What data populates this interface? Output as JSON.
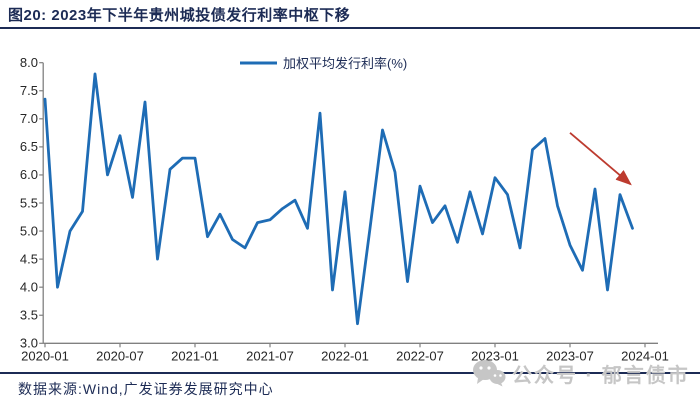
{
  "page": {
    "title": "图20: 2023年下半年贵州城投债发行利率中枢下移",
    "source_note": "数据来源:Wind,广发证券发展研究中心",
    "watermark_text": "公众号 · 郁言债市"
  },
  "legend": {
    "label": "加权平均发行利率(%)"
  },
  "colors": {
    "accent_navy": "#1c2b55",
    "line_blue": "#1e6cb5",
    "arrow_red": "#bd3b2f",
    "axis_line": "#808080",
    "tick_label": "#262626",
    "watermark_gray": "#c6c6c6"
  },
  "chart_data": {
    "type": "line",
    "title": "",
    "xlabel": "",
    "ylabel": "",
    "legend_position": "top-center",
    "grid": false,
    "ylim": [
      3.0,
      8.0
    ],
    "y_ticks": [
      8.0,
      7.5,
      7.0,
      6.5,
      6.0,
      5.5,
      5.0,
      4.5,
      4.0,
      3.5,
      3.0
    ],
    "x_tick_labels": [
      "2020-01",
      "2020-07",
      "2021-01",
      "2021-07",
      "2022-01",
      "2022-07",
      "2023-01",
      "2023-07",
      "2024-01"
    ],
    "series": [
      {
        "name": "加权平均发行利率(%)",
        "color": "#1e6cb5",
        "x": [
          "2020-01",
          "2020-02",
          "2020-03",
          "2020-04",
          "2020-05",
          "2020-06",
          "2020-07",
          "2020-08",
          "2020-09",
          "2020-10",
          "2020-11",
          "2020-12",
          "2021-01",
          "2021-02",
          "2021-03",
          "2021-04",
          "2021-05",
          "2021-06",
          "2021-07",
          "2021-08",
          "2021-09",
          "2021-10",
          "2021-11",
          "2021-12",
          "2022-01",
          "2022-02",
          "2022-03",
          "2022-04",
          "2022-05",
          "2022-06",
          "2022-07",
          "2022-08",
          "2022-09",
          "2022-10",
          "2022-11",
          "2022-12",
          "2023-01",
          "2023-02",
          "2023-03",
          "2023-04",
          "2023-05",
          "2023-06",
          "2023-07",
          "2023-08",
          "2023-09",
          "2023-10",
          "2023-11",
          "2023-12"
        ],
        "values": [
          7.35,
          4.0,
          5.0,
          5.35,
          7.8,
          6.0,
          6.7,
          5.6,
          7.3,
          4.5,
          6.1,
          6.3,
          6.3,
          4.9,
          5.3,
          4.85,
          4.7,
          5.15,
          5.2,
          5.4,
          5.55,
          5.05,
          7.1,
          3.95,
          5.7,
          3.35,
          5.05,
          6.8,
          6.05,
          4.1,
          5.8,
          5.15,
          5.45,
          4.8,
          5.7,
          4.95,
          5.95,
          5.65,
          4.7,
          6.45,
          6.65,
          5.45,
          4.75,
          4.3,
          5.75,
          3.95,
          5.65,
          5.05
        ]
      }
    ],
    "annotation": {
      "type": "arrow",
      "color": "#bd3b2f",
      "from_index": 42,
      "from_value": 6.75,
      "to_index": 47,
      "to_value": 5.8
    }
  }
}
